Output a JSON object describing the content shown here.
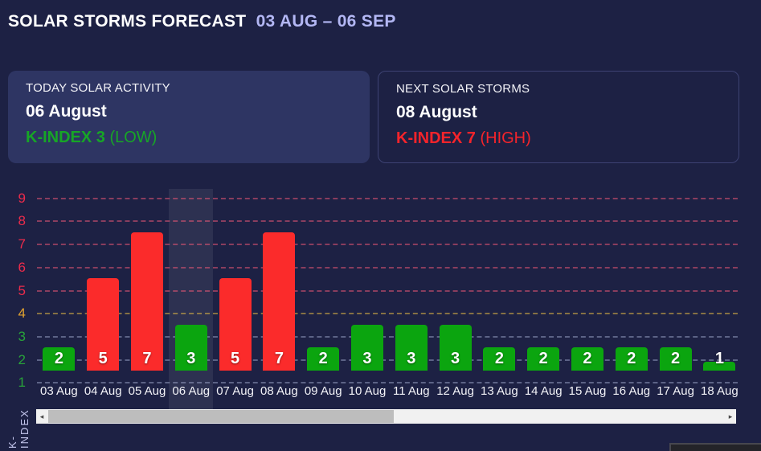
{
  "header": {
    "title": "SOLAR STORMS FORECAST",
    "date_range": "03 AUG – 06 SEP"
  },
  "cards": {
    "today": {
      "title": "TODAY SOLAR ACTIVITY",
      "date": "06 August",
      "kindex": "K-INDEX 3",
      "level": "(LOW)",
      "accent_color": "#17a626"
    },
    "next": {
      "title": "NEXT SOLAR STORMS",
      "date": "08 August",
      "kindex": "K-INDEX 7",
      "level": "(HIGH)",
      "accent_color": "#f5242b"
    }
  },
  "chart_data": {
    "type": "bar",
    "title": "",
    "xlabel": "",
    "ylabel": "K-INDEX",
    "categories": [
      "03 Aug",
      "04 Aug",
      "05 Aug",
      "06 Aug",
      "07 Aug",
      "08 Aug",
      "09 Aug",
      "10 Aug",
      "11 Aug",
      "12 Aug",
      "13 Aug",
      "14 Aug",
      "15 Aug",
      "16 Aug",
      "17 Aug",
      "18 Aug"
    ],
    "values": [
      2,
      5,
      7,
      3,
      5,
      7,
      2,
      3,
      3,
      3,
      2,
      2,
      2,
      2,
      2,
      1
    ],
    "highlighted_category": "06 Aug",
    "highlighted_index": 3,
    "yticks": [
      1,
      2,
      3,
      4,
      5,
      6,
      7,
      8,
      9
    ],
    "ylim": [
      0,
      9
    ],
    "grid": true,
    "legend": "none",
    "thresholds": {
      "red_min": 5,
      "amber": 4,
      "green_max": 3
    },
    "colors": {
      "bar_green": "#0ba50f",
      "bar_red": "#fb2b2b",
      "tick_green": "#28a23a",
      "tick_amber": "#e2a22f",
      "tick_red": "#ed2b4b",
      "grid_green_zone": "rgba(170,180,215,0.45)",
      "grid_amber_zone": "rgba(220,180,70,0.55)",
      "grid_red_zone": "rgba(245,90,120,0.5)",
      "background": "#1d2144",
      "highlight_band": "rgba(255,255,255,0.075)"
    }
  },
  "side_label": "K-INDEX",
  "scrollbar": {
    "left_arrow": "◂",
    "right_arrow": "▸"
  }
}
